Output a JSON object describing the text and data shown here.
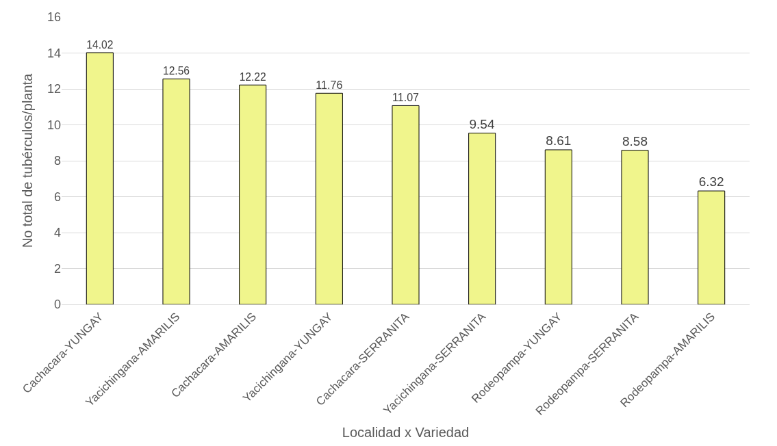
{
  "chart_data": {
    "type": "bar",
    "xlabel": "Localidad x Variedad",
    "ylabel": "No total de tubérculos/planta",
    "categories": [
      "Cachacara-YUNGAY",
      "Yacichingana-AMARILIS",
      "Cachacara-AMARILIS",
      "Yacichingana-YUNGAY",
      "Cachacara-SERRANITA",
      "Yacichingana-SERRANITA",
      "Rodeopampa-YUNGAY",
      "Rodeopampa-SERRANITA",
      "Rodeopampa-AMARILIS"
    ],
    "values": [
      14.02,
      12.56,
      12.22,
      11.76,
      11.07,
      9.54,
      8.61,
      8.58,
      6.32
    ],
    "color": "#f0f58c",
    "ylim": [
      0,
      16
    ],
    "yticks": [
      0,
      2,
      4,
      6,
      8,
      10,
      12,
      14,
      16
    ],
    "grid": "y",
    "data_labels": true,
    "legend": false
  }
}
